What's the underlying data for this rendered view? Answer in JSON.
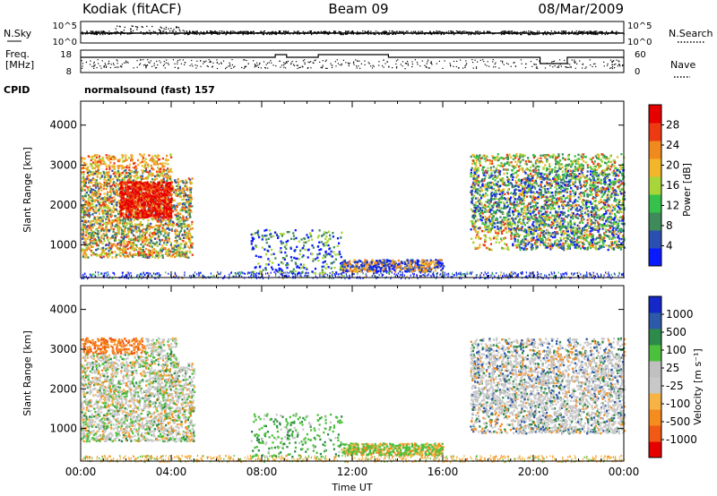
{
  "header": {
    "station": "Kodiak (fitACF)",
    "beam": "Beam 09",
    "date": "08/Mar/2009"
  },
  "top_panels": {
    "nsky_label": "N.Sky",
    "nsearch_label": "N.Search",
    "noise_left_ticks": [
      "10^5",
      "10^0"
    ],
    "noise_right_ticks": [
      "10^5",
      "10^0"
    ],
    "freq_label_1": "Freq.",
    "freq_label_2": "[MHz]",
    "freq_ticks": [
      "18",
      "8"
    ],
    "nave_label": "Nave",
    "nave_ticks": [
      "60",
      "0"
    ],
    "cpid_label": "CPID",
    "cpid_text": "normalsound (fast)  157"
  },
  "colors": {
    "power_scale": [
      "#0a1aff",
      "#2b4fb0",
      "#3f8a5a",
      "#36c24a",
      "#a8d63a",
      "#f2b62a",
      "#f08a1e",
      "#ee3a12",
      "#e60000"
    ],
    "velocity_scale": [
      "#e60000",
      "#f05a14",
      "#f48c1e",
      "#f7b445",
      "#c8c8c8",
      "#c0c0c0",
      "#4cc03c",
      "#2e8a4a",
      "#2d5aa8",
      "#1428c8"
    ]
  },
  "chart_data": [
    {
      "type": "heatmap",
      "title": "",
      "xlabel": "Time UT",
      "ylabel": "Slant Range [km]",
      "x_tick_labels": [
        "00:00",
        "04:00",
        "08:00",
        "12:00",
        "16:00",
        "20:00",
        "00:00"
      ],
      "xlim_hours": [
        0,
        24
      ],
      "ylim_km": [
        180,
        4600
      ],
      "y_ticks": [
        1000,
        2000,
        3000,
        4000
      ],
      "colorbar": {
        "label": "Power [dB]",
        "range": [
          0,
          30
        ],
        "ticks": [
          "4",
          "8",
          "12",
          "16",
          "20",
          "24",
          "28"
        ]
      },
      "echo_regions": [
        {
          "t": [
            0.0,
            4.9
          ],
          "r": [
            700,
            3300
          ],
          "level": "mixed 10-30 dB"
        },
        {
          "t": [
            1.7,
            4.0
          ],
          "r": [
            1700,
            2600
          ],
          "level": "strongest ~28 dB"
        },
        {
          "t": [
            7.5,
            11.5
          ],
          "r": [
            300,
            1400
          ],
          "level": "weak-moderate"
        },
        {
          "t": [
            11.5,
            16.0
          ],
          "r": [
            350,
            650
          ],
          "level": "moderate 16-22 dB"
        },
        {
          "t": [
            17.2,
            24.0
          ],
          "r": [
            900,
            3300
          ],
          "level": "mixed 8-24 dB"
        }
      ]
    },
    {
      "type": "heatmap",
      "title": "",
      "xlabel": "Time UT",
      "ylabel": "Slant Range [km]",
      "x_tick_labels": [
        "00:00",
        "04:00",
        "08:00",
        "12:00",
        "16:00",
        "20:00",
        "00:00"
      ],
      "xlim_hours": [
        0,
        24
      ],
      "ylim_km": [
        180,
        4600
      ],
      "y_ticks": [
        1000,
        2000,
        3000,
        4000
      ],
      "colorbar": {
        "label": "Velocity [m s⁻¹]",
        "ticks": [
          "1000",
          "500",
          "100",
          "25",
          "-25",
          "-100",
          "-500",
          "-1000"
        ]
      },
      "echo_regions": [
        {
          "t": [
            0.0,
            5.0
          ],
          "r": [
            700,
            3300
          ],
          "level": "ground scatter grey, green/orange patches"
        },
        {
          "t": [
            7.5,
            11.5
          ],
          "r": [
            300,
            1400
          ],
          "level": "green, low velocity"
        },
        {
          "t": [
            11.5,
            16.0
          ],
          "r": [
            350,
            650
          ],
          "level": "green/orange"
        },
        {
          "t": [
            17.2,
            24.0
          ],
          "r": [
            900,
            3300
          ],
          "level": "mostly ground scatter grey"
        }
      ]
    }
  ]
}
